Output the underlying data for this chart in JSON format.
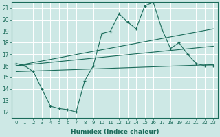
{
  "xlabel": "Humidex (Indice chaleur)",
  "bg_color": "#cde8e5",
  "line_color": "#1a6b5a",
  "grid_color": "#ffffff",
  "xlim": [
    -0.5,
    23.5
  ],
  "ylim": [
    11.5,
    21.5
  ],
  "xticks": [
    0,
    1,
    2,
    3,
    4,
    5,
    6,
    7,
    8,
    9,
    10,
    11,
    12,
    13,
    14,
    15,
    16,
    17,
    18,
    19,
    20,
    21,
    22,
    23
  ],
  "yticks": [
    12,
    13,
    14,
    15,
    16,
    17,
    18,
    19,
    20,
    21
  ],
  "main_x": [
    0,
    1,
    2,
    3,
    4,
    5,
    6,
    7,
    8,
    9,
    10,
    11,
    12,
    13,
    14,
    15,
    16,
    17,
    18,
    19,
    20,
    21,
    22,
    23
  ],
  "main_y": [
    16.2,
    16.0,
    15.5,
    14.0,
    12.5,
    12.3,
    12.2,
    12.0,
    14.7,
    16.0,
    18.8,
    19.0,
    20.5,
    19.8,
    19.2,
    21.2,
    21.5,
    19.2,
    17.5,
    18.0,
    17.0,
    16.2,
    16.0,
    16.0
  ],
  "line1_x": [
    0,
    23
  ],
  "line1_y": [
    16.0,
    19.2
  ],
  "line2_x": [
    0,
    23
  ],
  "line2_y": [
    16.0,
    17.7
  ],
  "line3_x": [
    0,
    23
  ],
  "line3_y": [
    15.5,
    16.1
  ]
}
